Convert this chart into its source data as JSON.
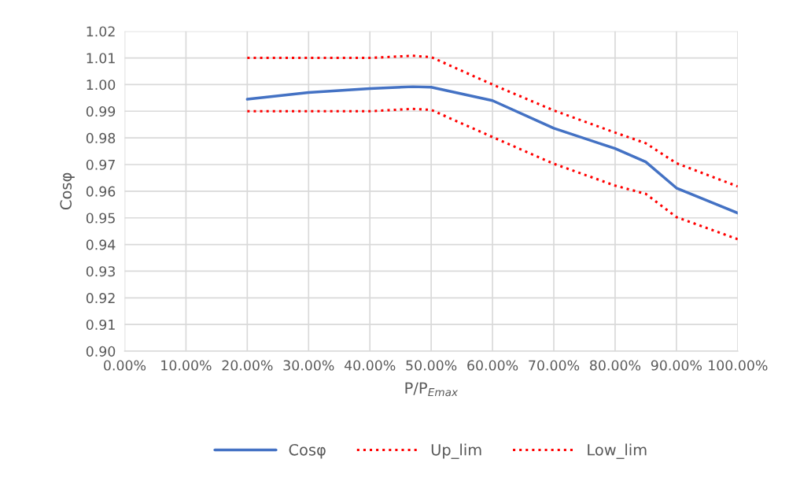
{
  "chart_data": {
    "type": "line",
    "xlabel": "P/P$_{Emax}$",
    "ylabel": "Cosφ",
    "xlim": [
      0,
      1
    ],
    "ylim": [
      0.9,
      1.02
    ],
    "xticks": [
      {
        "value": 0,
        "label": "0.00%"
      },
      {
        "value": 0.1,
        "label": "10.00%"
      },
      {
        "value": 0.2,
        "label": "20.00%"
      },
      {
        "value": 0.3,
        "label": "30.00%"
      },
      {
        "value": 0.4,
        "label": "40.00%"
      },
      {
        "value": 0.5,
        "label": "50.00%"
      },
      {
        "value": 0.6,
        "label": "60.00%"
      },
      {
        "value": 0.7,
        "label": "70.00%"
      },
      {
        "value": 0.8,
        "label": "80.00%"
      },
      {
        "value": 0.9,
        "label": "90.00%"
      },
      {
        "value": 1,
        "label": "100.00%"
      }
    ],
    "yticks": [
      {
        "value": 0.9,
        "label": "0.90"
      },
      {
        "value": 0.91,
        "label": "0.91"
      },
      {
        "value": 0.92,
        "label": "0.92"
      },
      {
        "value": 0.93,
        "label": "0.93"
      },
      {
        "value": 0.94,
        "label": "0.94"
      },
      {
        "value": 0.95,
        "label": "0.95"
      },
      {
        "value": 0.96,
        "label": "0.96"
      },
      {
        "value": 0.97,
        "label": "0.97"
      },
      {
        "value": 0.98,
        "label": "0.98"
      },
      {
        "value": 0.99,
        "label": "0.99"
      },
      {
        "value": 1.0,
        "label": "1.00"
      },
      {
        "value": 1.01,
        "label": "1.01"
      },
      {
        "value": 1.02,
        "label": "1.02"
      }
    ],
    "x": [
      0.2,
      0.3,
      0.4,
      0.47,
      0.5,
      0.6,
      0.7,
      0.8,
      0.85,
      0.9,
      1.0
    ],
    "series": [
      {
        "name": "Cosφ",
        "color": "#4472c4",
        "line_style": "solid",
        "values": [
          0.9945,
          0.997,
          0.9985,
          0.9992,
          0.999,
          0.994,
          0.9836,
          0.976,
          0.971,
          0.9612,
          0.9518
        ]
      },
      {
        "name": "Up_lim",
        "color": "#ff0000",
        "line_style": "dotted",
        "values": [
          1.01,
          1.01,
          1.01,
          1.0108,
          1.0103,
          1.0,
          0.9903,
          0.982,
          0.978,
          0.9705,
          0.9618
        ]
      },
      {
        "name": "Low_lim",
        "color": "#ff0000",
        "line_style": "dotted",
        "values": [
          0.99,
          0.99,
          0.99,
          0.9909,
          0.9905,
          0.9803,
          0.9703,
          0.9621,
          0.959,
          0.9503,
          0.942
        ]
      }
    ],
    "grid": true,
    "legend": "bottom"
  }
}
